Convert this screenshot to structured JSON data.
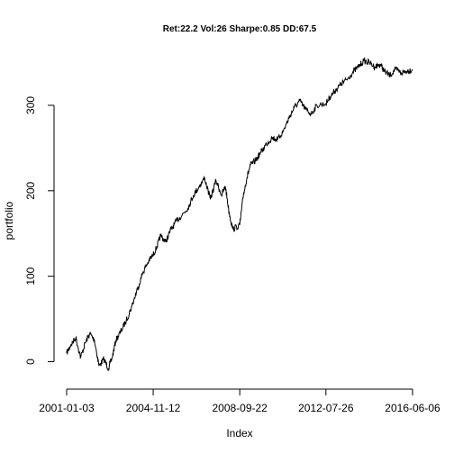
{
  "chart_data": {
    "type": "line",
    "title": "Ret:22.2 Vol:26 Sharpe:0.85 DD:67.5",
    "xlabel": "Index",
    "ylabel": "portfolio",
    "x_ticks": [
      {
        "x": "2001-01-03",
        "label": "2001-01-03"
      },
      {
        "x": "2004-11-12",
        "label": "2004-11-12"
      },
      {
        "x": "2008-09-22",
        "label": "2008-09-22"
      },
      {
        "x": "2012-07-26",
        "label": "2012-07-26"
      },
      {
        "x": "2016-06-06",
        "label": "2016-06-06"
      }
    ],
    "y_ticks": [
      0,
      100,
      200,
      300
    ],
    "xlim": [
      "2001-01-03",
      "2016-06-06"
    ],
    "ylim": [
      -30,
      360
    ],
    "grid": false,
    "series": [
      {
        "color": "#000000",
        "x": [
          "2001-01-03",
          "2001-03-15",
          "2001-06-01",
          "2001-08-20",
          "2001-11-01",
          "2002-01-15",
          "2002-04-01",
          "2002-06-15",
          "2002-09-01",
          "2002-11-15",
          "2003-01-15",
          "2003-03-15",
          "2003-06-01",
          "2003-09-01",
          "2003-12-01",
          "2004-03-01",
          "2004-06-01",
          "2004-09-01",
          "2004-11-12",
          "2005-01-15",
          "2005-03-15",
          "2005-06-01",
          "2005-09-01",
          "2005-12-01",
          "2006-03-01",
          "2006-06-01",
          "2006-09-01",
          "2006-12-01",
          "2007-03-01",
          "2007-06-01",
          "2007-09-01",
          "2007-12-01",
          "2008-02-01",
          "2008-04-01",
          "2008-06-01",
          "2008-09-22",
          "2008-11-20",
          "2009-01-15",
          "2009-03-15",
          "2009-06-01",
          "2009-09-01",
          "2009-12-01",
          "2010-03-01",
          "2010-06-01",
          "2010-09-01",
          "2010-12-01",
          "2011-03-01",
          "2011-06-01",
          "2011-09-01",
          "2011-12-01",
          "2012-03-01",
          "2012-07-26",
          "2012-10-01",
          "2013-01-01",
          "2013-04-01",
          "2013-07-01",
          "2013-10-01",
          "2014-01-01",
          "2014-04-01",
          "2014-07-01",
          "2014-10-01",
          "2015-01-01",
          "2015-03-01",
          "2015-06-01",
          "2015-09-01",
          "2015-12-01",
          "2016-03-01",
          "2016-06-06"
        ],
        "y": [
          10,
          20,
          28,
          5,
          22,
          33,
          25,
          -5,
          3,
          -8,
          5,
          25,
          35,
          48,
          65,
          85,
          105,
          118,
          125,
          135,
          148,
          140,
          155,
          165,
          172,
          180,
          195,
          205,
          215,
          190,
          212,
          195,
          205,
          175,
          155,
          160,
          195,
          215,
          230,
          235,
          245,
          255,
          262,
          260,
          270,
          285,
          298,
          305,
          295,
          290,
          300,
          302,
          310,
          318,
          325,
          330,
          338,
          345,
          352,
          350,
          345,
          348,
          340,
          335,
          342,
          338,
          340,
          342
        ]
      }
    ]
  }
}
